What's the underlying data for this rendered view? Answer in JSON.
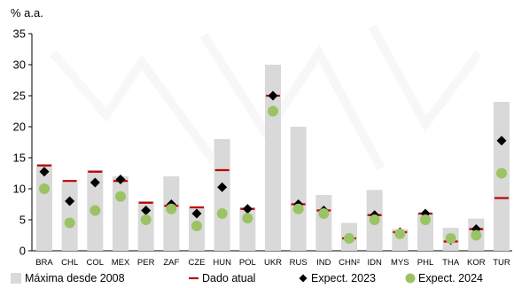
{
  "chart_data": {
    "type": "bar",
    "unit_label": "% a.a.",
    "ylim": [
      0,
      35
    ],
    "yticks": [
      0,
      5,
      10,
      15,
      20,
      25,
      30,
      35
    ],
    "categories": [
      "BRA",
      "CHL",
      "COL",
      "MEX",
      "PER",
      "ZAF",
      "CZE",
      "HUN",
      "POL",
      "UKR",
      "RUS",
      "IND",
      "CHN²",
      "IDN",
      "MYS",
      "PHL",
      "THA",
      "KOR",
      "TUR"
    ],
    "series": [
      {
        "name": "Máxima desde 2008",
        "kind": "bar",
        "color": "#d9d9d9",
        "values": [
          14,
          11,
          13,
          12,
          8,
          12,
          7,
          18,
          7,
          30,
          20,
          9,
          4.5,
          9.8,
          3.5,
          6,
          3.7,
          5.2,
          24
        ]
      },
      {
        "name": "Dado atual",
        "kind": "dash",
        "color": "#c00000",
        "values": [
          13.75,
          11.25,
          12.75,
          11.25,
          7.75,
          7.25,
          7.0,
          13.0,
          6.75,
          25.0,
          7.5,
          6.5,
          2.0,
          5.75,
          3.0,
          6.0,
          1.5,
          3.5,
          8.5
        ]
      },
      {
        "name": "Expect. 2023",
        "kind": "diamond",
        "color": "#000000",
        "values": [
          12.75,
          8.0,
          11.0,
          11.5,
          6.5,
          7.5,
          6.0,
          10.25,
          6.75,
          25.0,
          7.5,
          6.5,
          2.0,
          5.75,
          3.0,
          6.0,
          1.75,
          3.5,
          17.75
        ]
      },
      {
        "name": "Expect. 2024",
        "kind": "circle",
        "color": "#9bc364",
        "values": [
          10.0,
          4.5,
          6.5,
          8.75,
          5.0,
          6.75,
          4.0,
          6.0,
          5.25,
          22.5,
          6.75,
          6.0,
          2.0,
          5.0,
          2.75,
          5.0,
          2.0,
          2.5,
          12.5
        ]
      }
    ],
    "legend_position": "bottom",
    "grid": false
  }
}
